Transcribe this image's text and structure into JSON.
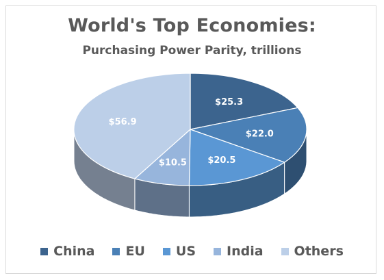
{
  "chart_data": {
    "type": "pie",
    "style": "3d-exploded-none",
    "title": "World's Top Economies:",
    "subtitle": "Purchasing Power Parity, trillions",
    "categories": [
      "China",
      "EU",
      "US",
      "India",
      "Others"
    ],
    "values": [
      25.3,
      22.0,
      20.5,
      10.5,
      56.9
    ],
    "data_labels": [
      "$25.3",
      "$22.0",
      "$20.5",
      "$10.5",
      "$56.9"
    ],
    "colors": [
      "#3c648e",
      "#4a80b6",
      "#5a97d4",
      "#97b5dc",
      "#bccfe8"
    ],
    "label_colors": [
      "#ffffff",
      "#ffffff",
      "#ffffff",
      "#ffffff",
      "#ffffff"
    ],
    "legend_position": "bottom",
    "start_angle": "12 o'clock",
    "direction": "clockwise"
  }
}
